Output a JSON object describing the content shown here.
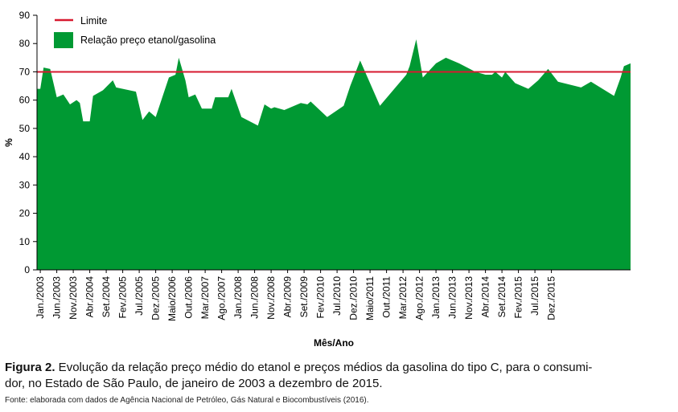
{
  "chart_data": {
    "type": "area",
    "ylabel": "%",
    "xlabel": "Mês/Ano",
    "ylim": [
      0,
      90
    ],
    "yticks": [
      0,
      10,
      20,
      30,
      40,
      50,
      60,
      70,
      80,
      90
    ],
    "x_tick_labels": [
      "Jan./2003",
      "Jun./2003",
      "Nov./2003",
      "Abr./2004",
      "Set./2004",
      "Fev./2005",
      "Jul./2005",
      "Dez./2005",
      "Maio/2006",
      "Out./2006",
      "Mar./2007",
      "Ago./2007",
      "Jan./2008",
      "Jun./2008",
      "Nov./2008",
      "Abr./2009",
      "Set./2009",
      "Fev./2010",
      "Jul./2010",
      "Dez./2010",
      "Maio/2011",
      "Out./2011",
      "Mar./2012",
      "Ago./2012",
      "Jan./2013",
      "Jun./2013",
      "Nov./2013",
      "Abr./2014",
      "Set./2014",
      "Fev./2015",
      "Jul./2015",
      "Dez./2015"
    ],
    "legend_position": "top-left",
    "series": [
      {
        "name": "Relação preço etanol/gasolina",
        "color": "#009933",
        "points": [
          [
            0,
            64
          ],
          [
            1,
            64
          ],
          [
            2,
            71.5
          ],
          [
            4,
            71
          ],
          [
            6,
            61
          ],
          [
            8,
            62
          ],
          [
            10,
            58.5
          ],
          [
            12,
            60
          ],
          [
            13,
            59
          ],
          [
            14,
            52.5
          ],
          [
            16,
            52.5
          ],
          [
            17,
            61.5
          ],
          [
            20,
            63.5
          ],
          [
            23,
            67
          ],
          [
            24,
            64.5
          ],
          [
            30,
            63
          ],
          [
            32,
            53
          ],
          [
            34,
            56
          ],
          [
            36,
            54
          ],
          [
            38,
            61
          ],
          [
            40,
            68
          ],
          [
            42,
            69
          ],
          [
            43,
            75
          ],
          [
            45,
            67
          ],
          [
            46,
            61
          ],
          [
            48,
            62
          ],
          [
            50,
            57
          ],
          [
            53,
            57
          ],
          [
            54,
            61
          ],
          [
            58,
            61
          ],
          [
            59,
            64
          ],
          [
            62,
            54
          ],
          [
            67,
            51
          ],
          [
            69,
            58.5
          ],
          [
            71,
            57
          ],
          [
            72,
            57.5
          ],
          [
            75,
            56.5
          ],
          [
            80,
            59
          ],
          [
            82,
            58.5
          ],
          [
            83,
            59.5
          ],
          [
            88,
            54
          ],
          [
            93,
            58
          ],
          [
            95,
            65
          ],
          [
            98,
            74
          ],
          [
            104,
            58
          ],
          [
            112,
            69
          ],
          [
            113,
            72
          ],
          [
            115,
            81.5
          ],
          [
            117,
            68
          ],
          [
            121,
            73
          ],
          [
            124,
            75
          ],
          [
            128,
            73
          ],
          [
            133,
            70
          ],
          [
            136,
            69
          ],
          [
            138,
            69
          ],
          [
            139,
            70
          ],
          [
            141,
            68
          ],
          [
            142,
            70
          ],
          [
            145,
            66
          ],
          [
            149,
            64
          ],
          [
            152,
            67
          ],
          [
            155,
            71
          ],
          [
            158,
            66.5
          ],
          [
            165,
            64.5
          ],
          [
            168,
            66.5
          ],
          [
            175,
            61.5
          ],
          [
            177,
            68
          ],
          [
            178,
            72
          ],
          [
            180,
            73
          ]
        ]
      }
    ],
    "reference_lines": [
      {
        "name": "Limite",
        "y": 70,
        "color": "#d7192f"
      }
    ]
  },
  "caption": {
    "label": "Figura 2.",
    "line1": " Evolução da relação preço médio do etanol e preços médios da gasolina do tipo C, para o consumi-",
    "line2": "dor, no Estado de São Paulo, de janeiro de 2003 a dezembro de 2015."
  },
  "source": "Fonte: elaborada com dados de Agência Nacional de Petróleo, Gás Natural e Biocombustíveis (2016)."
}
